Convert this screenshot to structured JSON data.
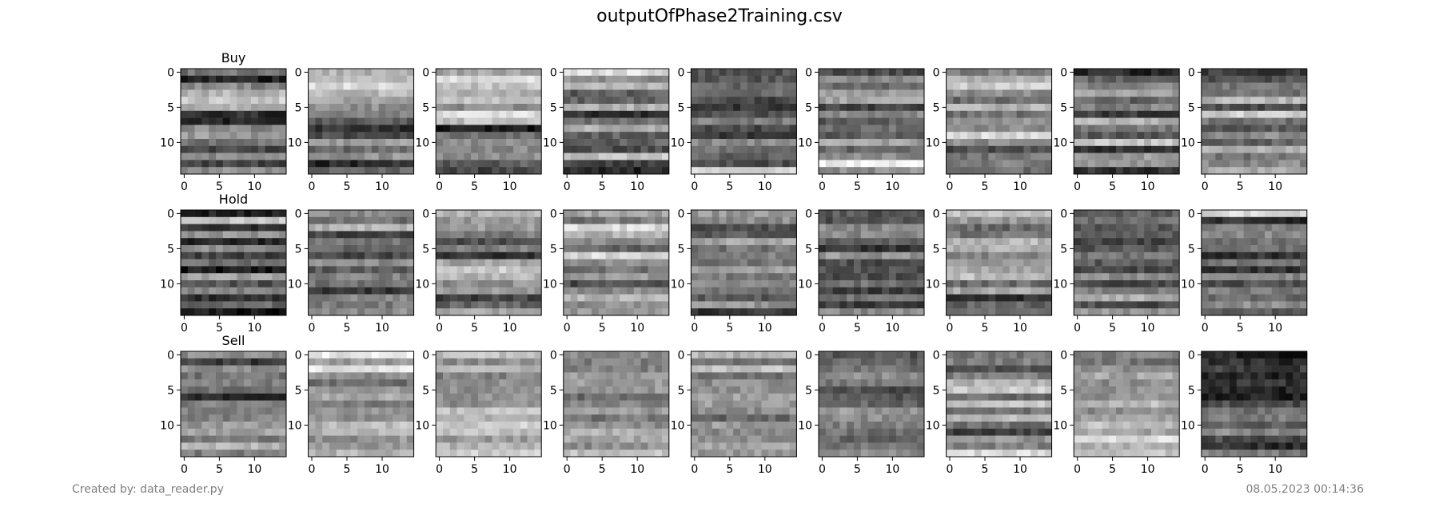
{
  "title": "outputOfPhase2Training.csv",
  "footer": {
    "created_by": "Created by: data_reader.py",
    "timestamp": "08.05.2023 00:14:36"
  },
  "chart_data": {
    "type": "heatmap",
    "colormap": "gray",
    "grid": false,
    "rows": 3,
    "columns": 9,
    "row_labels": [
      "Buy",
      "Hold",
      "Sell"
    ],
    "matrix_size": [
      15,
      15
    ],
    "x_ticks": [
      0,
      5,
      10
    ],
    "y_ticks": [
      0,
      5,
      10
    ],
    "xlim": [
      -0.5,
      14.5
    ],
    "ylim": [
      14.5,
      -0.5
    ],
    "note_values": "each panel is a 15x15 grayscale image; panels are mostly horizontally banded (values per row vary little across columns)",
    "panels": [
      [
        [
          0.45,
          0.15,
          0.55,
          0.7,
          0.78,
          0.7,
          0.2,
          0.15,
          0.55,
          0.6,
          0.45,
          0.3,
          0.55,
          0.25,
          0.55
        ],
        [
          0.7,
          0.7,
          0.85,
          0.75,
          0.65,
          0.55,
          0.5,
          0.35,
          0.2,
          0.3,
          0.6,
          0.4,
          0.55,
          0.15,
          0.4
        ],
        [
          0.65,
          0.85,
          0.75,
          0.7,
          0.8,
          0.55,
          0.85,
          0.75,
          0.12,
          0.45,
          0.55,
          0.5,
          0.55,
          0.35,
          0.25
        ],
        [
          0.85,
          0.55,
          0.7,
          0.35,
          0.4,
          0.7,
          0.2,
          0.45,
          0.7,
          0.4,
          0.35,
          0.3,
          0.75,
          0.25,
          0.15
        ],
        [
          0.35,
          0.35,
          0.4,
          0.45,
          0.3,
          0.2,
          0.3,
          0.5,
          0.3,
          0.2,
          0.55,
          0.45,
          0.4,
          0.3,
          0.85
        ],
        [
          0.3,
          0.55,
          0.45,
          0.6,
          0.65,
          0.25,
          0.55,
          0.35,
          0.4,
          0.35,
          0.65,
          0.4,
          0.55,
          0.95,
          0.55
        ],
        [
          0.5,
          0.7,
          0.8,
          0.55,
          0.4,
          0.7,
          0.45,
          0.6,
          0.55,
          0.85,
          0.55,
          0.3,
          0.45,
          0.5,
          0.45
        ],
        [
          0.15,
          0.4,
          0.5,
          0.65,
          0.4,
          0.5,
          0.25,
          0.7,
          0.45,
          0.35,
          0.8,
          0.2,
          0.6,
          0.55,
          0.2
        ],
        [
          0.25,
          0.3,
          0.45,
          0.45,
          0.7,
          0.3,
          0.8,
          0.45,
          0.35,
          0.55,
          0.4,
          0.7,
          0.45,
          0.55,
          0.65
        ]
      ],
      [
        [
          0.12,
          0.8,
          0.2,
          0.6,
          0.15,
          0.55,
          0.25,
          0.45,
          0.1,
          0.65,
          0.35,
          0.5,
          0.2,
          0.4,
          0.1
        ],
        [
          0.55,
          0.45,
          0.7,
          0.25,
          0.45,
          0.4,
          0.3,
          0.55,
          0.35,
          0.5,
          0.45,
          0.2,
          0.5,
          0.5,
          0.55
        ],
        [
          0.7,
          0.6,
          0.6,
          0.45,
          0.3,
          0.5,
          0.2,
          0.65,
          0.8,
          0.7,
          0.55,
          0.6,
          0.25,
          0.4,
          0.65
        ],
        [
          0.65,
          0.45,
          0.85,
          0.7,
          0.55,
          0.4,
          0.85,
          0.55,
          0.45,
          0.6,
          0.3,
          0.55,
          0.7,
          0.55,
          0.6
        ],
        [
          0.6,
          0.55,
          0.3,
          0.35,
          0.65,
          0.45,
          0.5,
          0.45,
          0.6,
          0.5,
          0.55,
          0.45,
          0.35,
          0.6,
          0.2
        ],
        [
          0.35,
          0.3,
          0.55,
          0.55,
          0.4,
          0.2,
          0.6,
          0.3,
          0.35,
          0.3,
          0.45,
          0.25,
          0.45,
          0.25,
          0.55
        ],
        [
          0.75,
          0.6,
          0.4,
          0.45,
          0.7,
          0.7,
          0.5,
          0.6,
          0.65,
          0.75,
          0.4,
          0.65,
          0.2,
          0.4,
          0.45
        ],
        [
          0.4,
          0.45,
          0.35,
          0.4,
          0.25,
          0.35,
          0.45,
          0.35,
          0.3,
          0.55,
          0.3,
          0.5,
          0.7,
          0.3,
          0.6
        ],
        [
          0.85,
          0.2,
          0.5,
          0.55,
          0.45,
          0.45,
          0.2,
          0.45,
          0.2,
          0.55,
          0.3,
          0.5,
          0.4,
          0.55,
          0.35
        ]
      ],
      [
        [
          0.55,
          0.25,
          0.55,
          0.45,
          0.5,
          0.45,
          0.15,
          0.5,
          0.5,
          0.5,
          0.6,
          0.65,
          0.45,
          0.7,
          0.5
        ],
        [
          0.9,
          0.6,
          0.9,
          0.55,
          0.45,
          0.6,
          0.65,
          0.45,
          0.6,
          0.55,
          0.7,
          0.7,
          0.55,
          0.6,
          0.7
        ],
        [
          0.75,
          0.55,
          0.7,
          0.5,
          0.55,
          0.55,
          0.55,
          0.55,
          0.75,
          0.7,
          0.8,
          0.75,
          0.6,
          0.7,
          0.8
        ],
        [
          0.55,
          0.5,
          0.5,
          0.6,
          0.6,
          0.6,
          0.4,
          0.5,
          0.6,
          0.45,
          0.55,
          0.7,
          0.65,
          0.55,
          0.75
        ],
        [
          0.7,
          0.45,
          0.75,
          0.45,
          0.55,
          0.55,
          0.65,
          0.6,
          0.55,
          0.4,
          0.6,
          0.55,
          0.55,
          0.65,
          0.6
        ],
        [
          0.35,
          0.4,
          0.45,
          0.55,
          0.45,
          0.3,
          0.35,
          0.4,
          0.6,
          0.55,
          0.5,
          0.45,
          0.4,
          0.45,
          0.55
        ],
        [
          0.45,
          0.5,
          0.3,
          0.5,
          0.7,
          0.8,
          0.45,
          0.75,
          0.45,
          0.7,
          0.45,
          0.25,
          0.6,
          0.5,
          0.85
        ],
        [
          0.5,
          0.45,
          0.55,
          0.65,
          0.55,
          0.55,
          0.55,
          0.7,
          0.55,
          0.6,
          0.75,
          0.65,
          0.85,
          0.7,
          0.75
        ],
        [
          0.15,
          0.2,
          0.25,
          0.15,
          0.2,
          0.15,
          0.12,
          0.3,
          0.45,
          0.5,
          0.4,
          0.55,
          0.3,
          0.2,
          0.5
        ]
      ]
    ]
  }
}
